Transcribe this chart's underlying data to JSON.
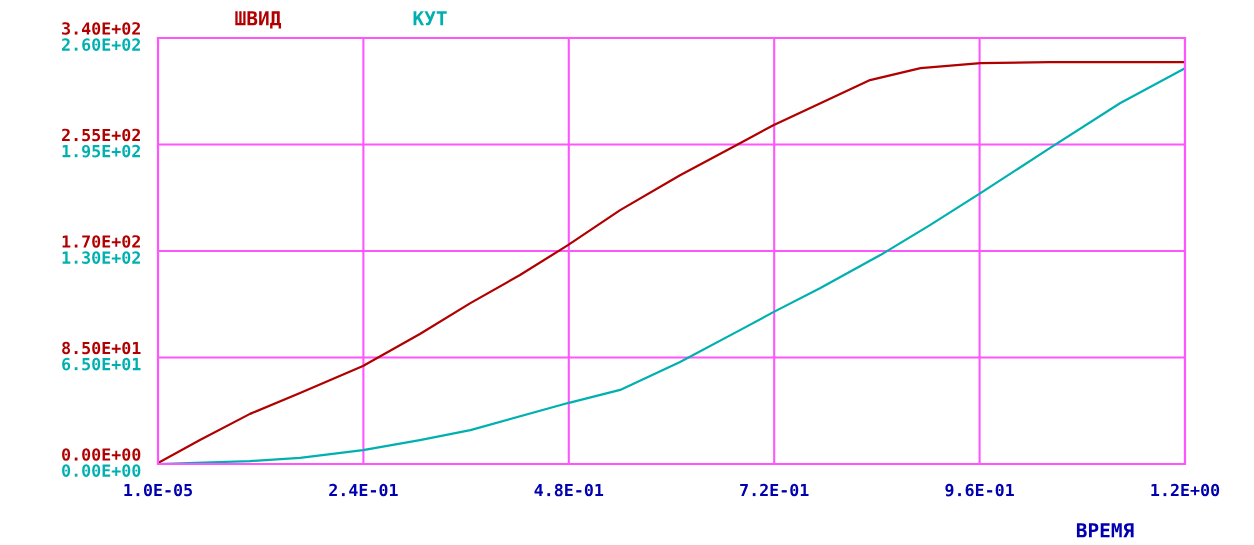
{
  "chart_data": {
    "type": "line",
    "xlabel": "ВРЕМЯ",
    "grid": true,
    "xlim": [
      1e-05,
      1.2
    ],
    "xticks": [
      {
        "value": 1e-05,
        "label": "1.0E-05"
      },
      {
        "value": 0.24,
        "label": "2.4E-01"
      },
      {
        "value": 0.48,
        "label": "4.8E-01"
      },
      {
        "value": 0.72,
        "label": "7.2E-01"
      },
      {
        "value": 0.96,
        "label": "9.6E-01"
      },
      {
        "value": 1.2,
        "label": "1.2E+00"
      }
    ],
    "ylim": [
      0,
      340
    ],
    "yticks": [
      {
        "value": 0,
        "label": "0.00E+00"
      },
      {
        "value": 85,
        "label": "8.50E+01"
      },
      {
        "value": 170,
        "label": "1.70E+02"
      },
      {
        "value": 255,
        "label": "2.55E+02"
      },
      {
        "value": 340,
        "label": "3.40E+02"
      }
    ],
    "y2lim": [
      0,
      260
    ],
    "y2ticks": [
      {
        "value": 0,
        "label": "0.00E+00"
      },
      {
        "value": 65,
        "label": "6.50E+01"
      },
      {
        "value": 130,
        "label": "1.30E+02"
      },
      {
        "value": 195,
        "label": "1.95E+02"
      },
      {
        "value": 260,
        "label": "2.60E+02"
      }
    ],
    "series": [
      {
        "name": "ШВИД",
        "color": "#b00000",
        "x": [
          1e-05,
          0.049,
          0.1075,
          0.166,
          0.2395,
          0.306,
          0.365,
          0.423,
          0.479,
          0.54,
          0.61,
          0.68,
          0.719,
          0.774,
          0.832,
          0.891,
          0.961,
          1.042,
          1.2
        ],
        "values": [
          0.8,
          19.2,
          40,
          56.7,
          78.2,
          103.7,
          128.4,
          150.8,
          174.7,
          202.6,
          230.5,
          256,
          270.4,
          288,
          306.4,
          316,
          320,
          320.8,
          320.8
        ]
      },
      {
        "name": "КУТ",
        "color": "#00b0b0",
        "axis": "y2",
        "x": [
          1e-05,
          0.1075,
          0.166,
          0.2395,
          0.306,
          0.365,
          0.479,
          0.54,
          0.61,
          0.68,
          0.719,
          0.774,
          0.844,
          0.902,
          0.961,
          1.042,
          1.124,
          1.2
        ],
        "values": [
          0,
          1.8,
          3.7,
          8.5,
          14.6,
          20.7,
          37.2,
          45.2,
          62.2,
          81.7,
          92.7,
          107.4,
          127.5,
          145.8,
          165.3,
          192.8,
          220.2,
          241.6
        ]
      }
    ]
  }
}
